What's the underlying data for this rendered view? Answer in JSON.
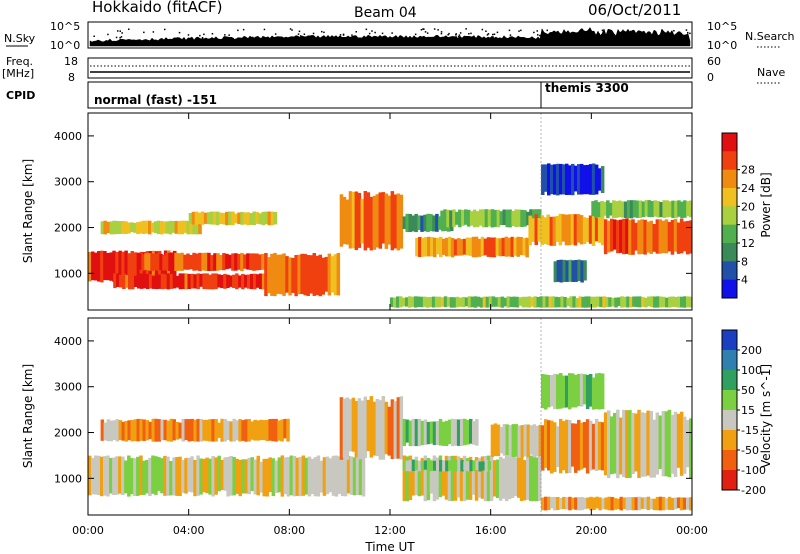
{
  "header": {
    "title": "Hokkaido (fitACF)",
    "beam": "Beam 04",
    "date": "06/Oct/2011"
  },
  "panels": {
    "nsky": {
      "label": "N.Sky",
      "right_label": "N.Search",
      "left_ticks": [
        "10^5",
        "10^0"
      ],
      "right_ticks": [
        "10^5",
        "10^0"
      ]
    },
    "freq": {
      "label": "Freq.",
      "unit": "[MHz]",
      "right_label": "Nave",
      "left_ticks": [
        "18",
        "8"
      ],
      "right_ticks": [
        "60",
        "0"
      ]
    },
    "cpid": {
      "label": "CPID",
      "entries": [
        "normal (fast) -151",
        "themis 3300"
      ]
    }
  },
  "chart_data": [
    {
      "type": "heatmap",
      "quantity": "Power",
      "ylabel": "Slant Range [km]",
      "xlabel": "Time UT",
      "xticks": [
        "00:00",
        "04:00",
        "08:00",
        "12:00",
        "16:00",
        "20:00",
        "00:00"
      ],
      "yticks": [
        "1000",
        "2000",
        "3000",
        "4000"
      ],
      "ylim": [
        200,
        4500
      ],
      "colorbar": {
        "label": "Power [dB]",
        "ticks": [
          "4",
          "8",
          "12",
          "16",
          "20",
          "24",
          "28"
        ],
        "colors": [
          "#1010e8",
          "#2050a8",
          "#3a8a5a",
          "#50b050",
          "#a8d040",
          "#f0c020",
          "#f08a10",
          "#f04010",
          "#e01010"
        ]
      },
      "bands": [
        {
          "t0": 0.0,
          "t1": 3.5,
          "r0": 800,
          "r1": 1500,
          "level": 0.88
        },
        {
          "t0": 1.0,
          "t1": 7.5,
          "r0": 650,
          "r1": 1000,
          "level": 0.92
        },
        {
          "t0": 2.0,
          "t1": 7.0,
          "r0": 1050,
          "r1": 1450,
          "level": 0.85
        },
        {
          "t0": 7.0,
          "t1": 10.0,
          "r0": 500,
          "r1": 1450,
          "level": 0.8
        },
        {
          "t0": 10.0,
          "t1": 12.5,
          "r0": 1500,
          "r1": 2800,
          "level": 0.8
        },
        {
          "t0": 0.5,
          "t1": 4.5,
          "r0": 1850,
          "r1": 2150,
          "level": 0.6
        },
        {
          "t0": 4.0,
          "t1": 7.5,
          "r0": 2050,
          "r1": 2350,
          "level": 0.58
        },
        {
          "t0": 12.5,
          "t1": 14.5,
          "r0": 1900,
          "r1": 2300,
          "level": 0.3
        },
        {
          "t0": 13.0,
          "t1": 17.5,
          "r0": 1350,
          "r1": 1800,
          "level": 0.75
        },
        {
          "t0": 14.0,
          "t1": 18.0,
          "r0": 2000,
          "r1": 2400,
          "level": 0.38
        },
        {
          "t0": 17.5,
          "t1": 20.5,
          "r0": 1600,
          "r1": 2300,
          "level": 0.72
        },
        {
          "t0": 18.0,
          "t1": 20.5,
          "r0": 2700,
          "r1": 3400,
          "level": 0.1
        },
        {
          "t0": 18.5,
          "t1": 19.8,
          "r0": 800,
          "r1": 1300,
          "level": 0.2
        },
        {
          "t0": 20.5,
          "t1": 24.0,
          "r0": 1400,
          "r1": 2200,
          "level": 0.84
        },
        {
          "t0": 20.0,
          "t1": 24.0,
          "r0": 2200,
          "r1": 2600,
          "level": 0.42
        },
        {
          "t0": 12.0,
          "t1": 24.0,
          "r0": 250,
          "r1": 500,
          "level": 0.45
        }
      ]
    },
    {
      "type": "heatmap",
      "quantity": "Velocity",
      "ylabel": "Slant Range [km]",
      "xlabel": "Time UT",
      "xticks": [
        "00:00",
        "04:00",
        "08:00",
        "12:00",
        "16:00",
        "20:00",
        "00:00"
      ],
      "yticks": [
        "1000",
        "2000",
        "3000",
        "4000"
      ],
      "ylim": [
        200,
        4500
      ],
      "colorbar": {
        "label": "Velocity [m s^-1]",
        "ticks": [
          "200",
          "100",
          "50",
          "15",
          "-15",
          "-50",
          "-100",
          "-200"
        ],
        "colors": [
          "#1840c0",
          "#2f7fb0",
          "#30a060",
          "#7ad040",
          "#c8c8c0",
          "#f0a010",
          "#f06010",
          "#e02010"
        ]
      },
      "bands": [
        {
          "t0": 0.0,
          "t1": 11.0,
          "r0": 600,
          "r1": 1500,
          "vel": "-15"
        },
        {
          "t0": 0.5,
          "t1": 8.0,
          "r0": 1800,
          "r1": 2300,
          "vel": "-50"
        },
        {
          "t0": 10.0,
          "t1": 12.5,
          "r0": 1400,
          "r1": 2800,
          "vel": "-50"
        },
        {
          "t0": 12.5,
          "t1": 18.0,
          "r0": 500,
          "r1": 1500,
          "vel": "-15"
        },
        {
          "t0": 12.5,
          "t1": 15.5,
          "r0": 1700,
          "r1": 2300,
          "vel": "15"
        },
        {
          "t0": 12.5,
          "t1": 16.0,
          "r0": 1150,
          "r1": 1400,
          "vel": "15"
        },
        {
          "t0": 16.0,
          "t1": 18.5,
          "r0": 1450,
          "r1": 2200,
          "vel": "-15"
        },
        {
          "t0": 18.0,
          "t1": 20.5,
          "r0": 1100,
          "r1": 2300,
          "vel": "-50"
        },
        {
          "t0": 18.0,
          "t1": 20.5,
          "r0": 2500,
          "r1": 3300,
          "vel": "15"
        },
        {
          "t0": 20.5,
          "t1": 24.0,
          "r0": 1000,
          "r1": 2500,
          "vel": "-15"
        },
        {
          "t0": 18.0,
          "t1": 24.0,
          "r0": 300,
          "r1": 600,
          "vel": "-50"
        }
      ]
    }
  ]
}
